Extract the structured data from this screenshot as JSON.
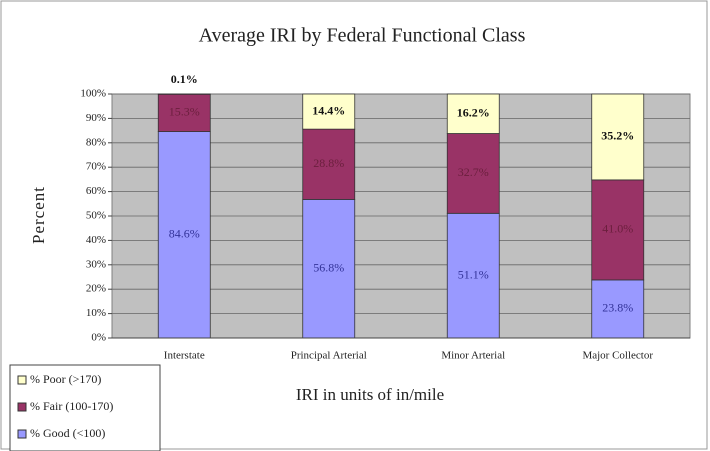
{
  "chart_data": {
    "type": "stacked_bar",
    "title": "Average IRI by Federal Functional Class",
    "x_label": "IRI in units of in/mile",
    "y_label": "Percent",
    "categories": [
      "Interstate",
      "Principal Arterial",
      "Minor Arterial",
      "Major Collector"
    ],
    "series": [
      {
        "name": "% Good (<100)",
        "color": "#9999ff",
        "values": [
          84.6,
          56.8,
          51.1,
          23.8
        ],
        "value_labels": [
          "84.6%",
          "56.8%",
          "51.1%",
          "23.8%"
        ]
      },
      {
        "name": "% Fair (100-170)",
        "color": "#993366",
        "values": [
          15.3,
          28.8,
          32.7,
          41.0
        ],
        "value_labels": [
          "15.3%",
          "28.8%",
          "32.7%",
          "41.0%"
        ]
      },
      {
        "name": "% Poor (>170)",
        "color": "#ffffcc",
        "values": [
          0.1,
          14.4,
          16.2,
          35.2
        ],
        "value_labels": [
          "0.1%",
          "14.4%",
          "16.2%",
          "35.2%"
        ]
      }
    ],
    "ylim": [
      0,
      100
    ],
    "yticks": [
      {
        "value": 0,
        "label": "0%"
      },
      {
        "value": 10,
        "label": "10%"
      },
      {
        "value": 20,
        "label": "20%"
      },
      {
        "value": 30,
        "label": "30%"
      },
      {
        "value": 40,
        "label": "40%"
      },
      {
        "value": 50,
        "label": "50%"
      },
      {
        "value": 60,
        "label": "60%"
      },
      {
        "value": 70,
        "label": "70%"
      },
      {
        "value": 80,
        "label": "80%"
      },
      {
        "value": 90,
        "label": "90%"
      },
      {
        "value": 100,
        "label": "100%"
      }
    ],
    "grid": true,
    "legend": "bottom-left"
  }
}
